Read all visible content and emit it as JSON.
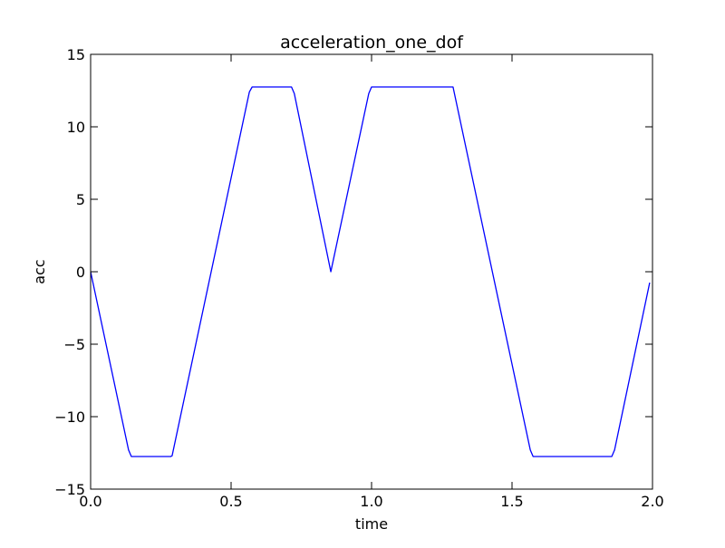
{
  "chart_data": {
    "type": "line",
    "title": "acceleration_one_dof",
    "xlabel": "time",
    "ylabel": "acc",
    "xlim": [
      0.0,
      2.0
    ],
    "ylim": [
      -15,
      15
    ],
    "xticks": [
      0.0,
      0.5,
      1.0,
      1.5,
      2.0
    ],
    "xtick_labels": [
      "0.0",
      "0.5",
      "1.0",
      "1.5",
      "2.0"
    ],
    "yticks": [
      15,
      10,
      5,
      0,
      -5,
      -10,
      -15
    ],
    "ytick_labels": [
      "15",
      "10",
      "5",
      "0",
      "−5",
      "−10",
      "−15"
    ],
    "grid": false,
    "series": [
      {
        "color": "#0000ff",
        "x": [
          0.0,
          0.135,
          0.145,
          0.285,
          0.29,
          0.565,
          0.575,
          0.715,
          0.725,
          0.855,
          0.99,
          1.0,
          1.29,
          1.565,
          1.575,
          1.855,
          1.865,
          1.99
        ],
        "y": [
          0.0,
          -12.3,
          -12.75,
          -12.75,
          -12.7,
          12.4,
          12.75,
          12.75,
          12.3,
          0.0,
          12.3,
          12.75,
          12.75,
          -12.3,
          -12.75,
          -12.75,
          -12.3,
          -0.75
        ]
      }
    ]
  }
}
